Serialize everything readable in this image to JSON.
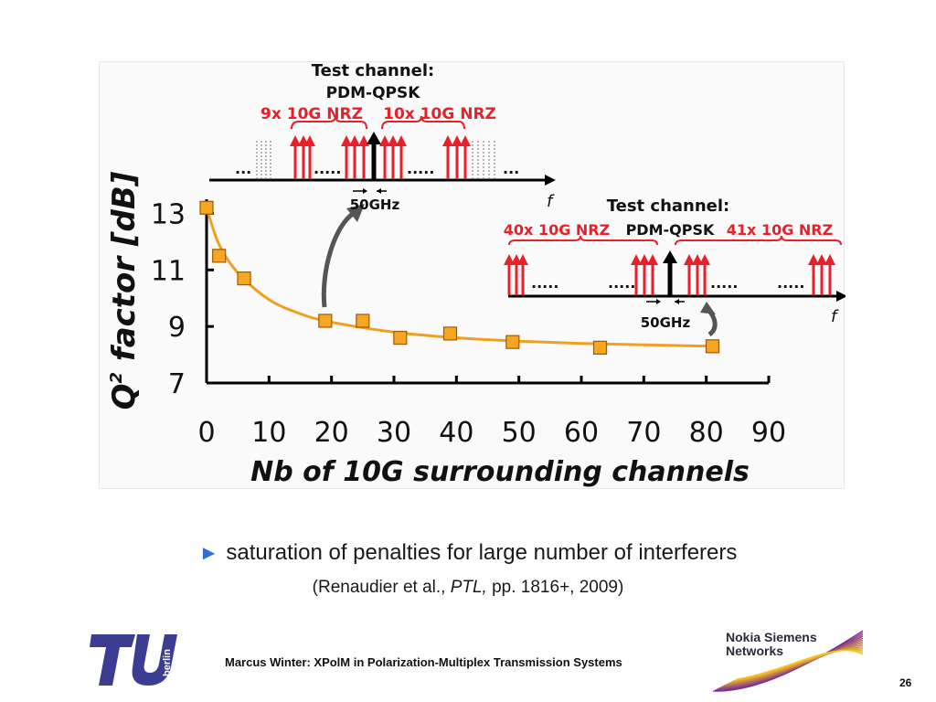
{
  "chart_data": {
    "type": "scatter",
    "xlabel": "Nb of 10G surrounding channels",
    "ylabel": "Q² factor [dB]",
    "ylabel_main": "Q",
    "ylabel_sup": "2",
    "ylabel_rest": " factor [dB]",
    "xlim": [
      0,
      90
    ],
    "ylim": [
      7,
      13.5
    ],
    "x_ticks": [
      "0",
      "10",
      "20",
      "30",
      "40",
      "50",
      "60",
      "70",
      "80",
      "90"
    ],
    "y_ticks": [
      "7",
      "9",
      "11",
      "13"
    ],
    "marker_color": "#f5a623",
    "fit_color": "#f0a020",
    "points": [
      {
        "x": 0,
        "y": 13.2
      },
      {
        "x": 2,
        "y": 11.5
      },
      {
        "x": 6,
        "y": 10.7
      },
      {
        "x": 19,
        "y": 9.2
      },
      {
        "x": 25,
        "y": 9.2
      },
      {
        "x": 31,
        "y": 8.6
      },
      {
        "x": 39,
        "y": 8.75
      },
      {
        "x": 49,
        "y": 8.45
      },
      {
        "x": 63,
        "y": 8.25
      },
      {
        "x": 81,
        "y": 8.3
      }
    ],
    "fit": [
      {
        "x": 0,
        "y": 13.2
      },
      {
        "x": 2,
        "y": 11.9
      },
      {
        "x": 5,
        "y": 10.9
      },
      {
        "x": 10,
        "y": 9.95
      },
      {
        "x": 15,
        "y": 9.45
      },
      {
        "x": 20,
        "y": 9.15
      },
      {
        "x": 30,
        "y": 8.8
      },
      {
        "x": 40,
        "y": 8.6
      },
      {
        "x": 50,
        "y": 8.48
      },
      {
        "x": 60,
        "y": 8.4
      },
      {
        "x": 70,
        "y": 8.35
      },
      {
        "x": 81,
        "y": 8.3
      }
    ],
    "inset_top": {
      "title_line1": "Test channel:",
      "title_line2": "PDM-QPSK",
      "left_label": "9x 10G NRZ",
      "right_label": "10x 10G NRZ",
      "spacing_label": "50GHz",
      "axis_label": "f",
      "dots": [
        "...",
        ".....",
        ".....",
        "..."
      ]
    },
    "inset_bottom": {
      "title": "Test channel:",
      "left_label": "40x 10G NRZ",
      "center_label": "PDM-QPSK",
      "right_label": "41x 10G NRZ",
      "spacing_label": "50GHz",
      "axis_label": "f",
      "dots": [
        ".....",
        ".....",
        ".....",
        "....."
      ]
    },
    "carrier_color": "#e8202a"
  },
  "bullet": {
    "text": "saturation of penalties for large number of interferers",
    "ref_prefix": "(Renaudier et al., ",
    "ref_journal": "PTL,",
    "ref_suffix": " pp. 1816+, 2009)",
    "accent": "#2f6fd1"
  },
  "footer": {
    "author_title": "Marcus Winter: XPolM in Polarization-Multiplex Transmission Systems",
    "page_number": "26"
  },
  "logos": {
    "tu_label": "berlin",
    "nsn_line1": "Nokia Siemens",
    "nsn_line2": "Networks",
    "tu_color": "#3b3d93"
  }
}
